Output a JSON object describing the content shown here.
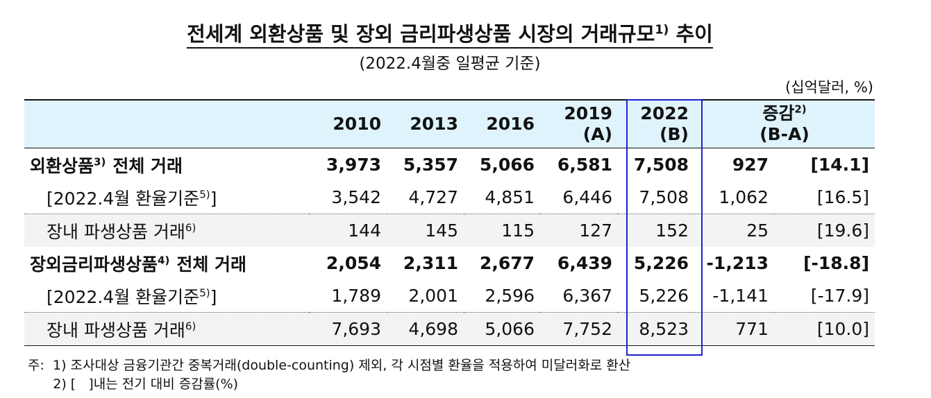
{
  "title": {
    "text": "전세계 외환상품 및 장외 금리파생상품 시장의 거래규모",
    "sup": "1)",
    "suffix": "추이"
  },
  "subtitle": "(2022.4월중 일평균 기준)",
  "unit": "(십억달러, %)",
  "table": {
    "columns": [
      {
        "year": "2010"
      },
      {
        "year": "2013"
      },
      {
        "year": "2016"
      },
      {
        "year": "2019",
        "note": "(A)"
      },
      {
        "year": "2022",
        "note": "(B)"
      },
      {
        "year": "증감",
        "sup": "2)",
        "note": "(B-A)"
      }
    ],
    "rows": [
      {
        "label": "외환상품",
        "sup": "3)",
        "after": "전체 거래",
        "cells": [
          "3,973",
          "5,357",
          "5,066",
          "6,581",
          "7,508",
          "927",
          "[14.1]"
        ]
      },
      {
        "label": "[2022.4월 환율기준",
        "sup": "5)",
        "after": "]",
        "cells": [
          "3,542",
          "4,727",
          "4,851",
          "6,446",
          "7,508",
          "1,062",
          "[16.5]"
        ]
      },
      {
        "label": "장내 파생상품 거래",
        "sup": "6)",
        "cells": [
          "144",
          "145",
          "115",
          "127",
          "152",
          "25",
          "[19.6]"
        ]
      },
      {
        "label": "장외금리파생상품",
        "sup": "4)",
        "after": "전체 거래",
        "cells": [
          "2,054",
          "2,311",
          "2,677",
          "6,439",
          "5,226",
          "-1,213",
          "[-18.8]"
        ]
      },
      {
        "label": "[2022.4월 환율기준",
        "sup": "5)",
        "after": "]",
        "cells": [
          "1,789",
          "2,001",
          "2,596",
          "6,367",
          "5,226",
          "-1,141",
          "[-17.9]"
        ]
      },
      {
        "label": "장내 파생상품 거래",
        "sup": "6)",
        "cells": [
          "7,693",
          "4,698",
          "5,066",
          "7,752",
          "8,523",
          "771",
          "[10.0]"
        ]
      }
    ]
  },
  "notes": {
    "prefix": "주:",
    "lines": [
      "1) 조사대상 금융기관간 중복거래(double-counting) 제외, 각 시점별 환율을 적용하여 미달러화로 환산",
      "2) [   ]내는 전기 대비 증감률(%)"
    ]
  }
}
